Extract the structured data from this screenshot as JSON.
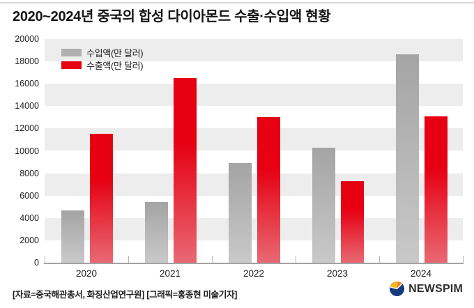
{
  "title": "2020~2024년 중국의 합성 다이아몬드 수출·수입액 현황",
  "legend": [
    {
      "label": "수입액(만 달러)",
      "color": "#b0b0b0"
    },
    {
      "label": "수출액(만 달러)",
      "color": "#e60012"
    }
  ],
  "colors": {
    "background": "#ffffff",
    "stripe": "#ededed",
    "axis": "#a3a3a3",
    "tick": "#b8b8b8",
    "import_bar_top": "#a4a4a4",
    "import_bar_bottom": "#c9c9c9",
    "export_bar_top": "#e60012",
    "export_bar_bottom": "#e86973",
    "logo_navy": "#163a7c",
    "logo_yellow": "#ffb81c",
    "logo_orange": "#f58220"
  },
  "chart_data": {
    "type": "bar",
    "categories": [
      "2020",
      "2021",
      "2022",
      "2023",
      "2024"
    ],
    "series": [
      {
        "name": "수입액(만 달러)",
        "values": [
          4700,
          5400,
          8900,
          10300,
          18600
        ]
      },
      {
        "name": "수출액(만 달러)",
        "values": [
          11500,
          16500,
          13000,
          7300,
          13100
        ]
      }
    ],
    "title": "2020~2024년 중국의 합성 다이아몬드 수출·수입액 현황",
    "xlabel": "",
    "ylabel": "",
    "ylim": [
      0,
      20000
    ],
    "ytick_step": 2000,
    "yticks": [
      "20000",
      "18000",
      "16000",
      "14000",
      "12000",
      "10000",
      "8000",
      "6000",
      "4000",
      "2000",
      "0"
    ],
    "grid": "striped-horizontal",
    "legend_position": "top-left"
  },
  "footer": {
    "source": "[자료=중국해관총서, 화징산업연구원] [그래픽=홍종현 미술기자]",
    "logo_text": "NEWSPIM"
  }
}
